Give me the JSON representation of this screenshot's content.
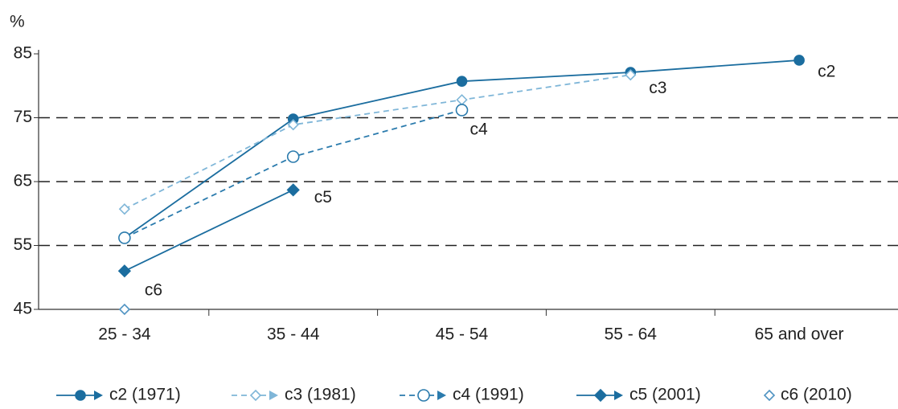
{
  "chart_data": {
    "type": "line",
    "y_label": "%",
    "categories": [
      "25 - 34",
      "35 - 44",
      "45 - 54",
      "55 - 64",
      "65 and over"
    ],
    "ylim": [
      45,
      85
    ],
    "yticks": [
      45,
      55,
      65,
      75,
      85
    ],
    "grid": true,
    "series": [
      {
        "name": "c2 (1971)",
        "annotation": "c2",
        "color": "#1b6d9f",
        "marker": "circle",
        "filled": true,
        "dashed": false,
        "values": [
          56.2,
          74.8,
          80.7,
          82.1,
          84
        ]
      },
      {
        "name": "c3 (1981)",
        "annotation": "c3",
        "color": "#7fb6d8",
        "marker": "diamond",
        "filled": false,
        "dashed": true,
        "values": [
          60.7,
          73.9,
          77.8,
          81.7,
          null
        ]
      },
      {
        "name": "c4 (1991)",
        "annotation": "c4",
        "color": "#2b7bad",
        "marker": "circle",
        "filled": false,
        "dashed": true,
        "values": [
          56.2,
          68.9,
          76.2,
          null,
          null
        ]
      },
      {
        "name": "c5 (2001)",
        "annotation": "c5",
        "color": "#1b6d9f",
        "marker": "diamond",
        "filled": true,
        "dashed": false,
        "values": [
          51,
          63.7,
          null,
          null,
          null
        ]
      },
      {
        "name": "c6 (2010)",
        "annotation": "c6",
        "color": "#4f93c2",
        "marker": "diamond",
        "filled": false,
        "dashed": false,
        "values": [
          45,
          null,
          null,
          null,
          null
        ]
      }
    ]
  }
}
